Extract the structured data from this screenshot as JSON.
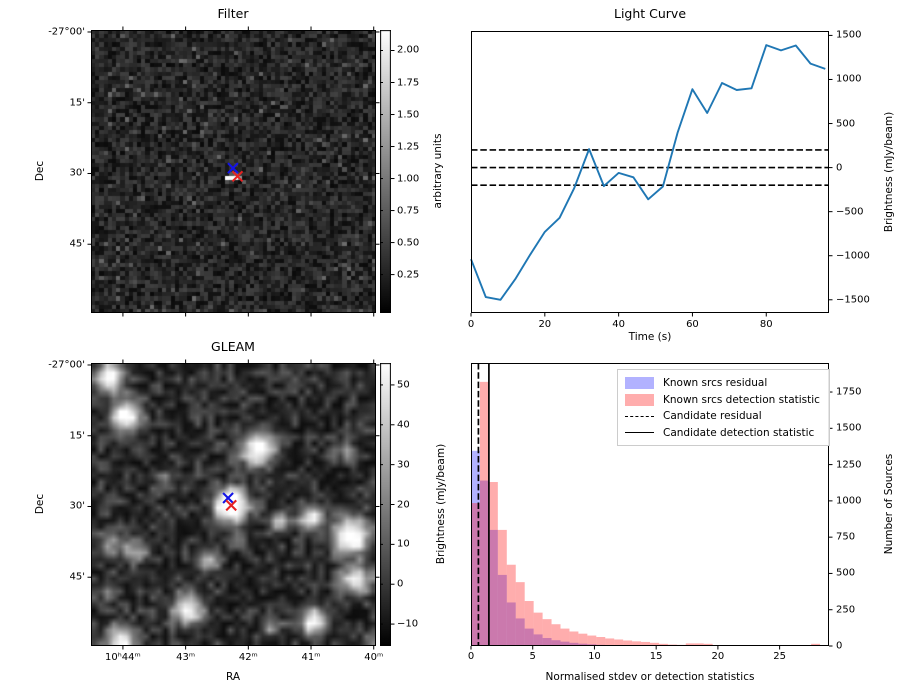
{
  "figure": {
    "background": "#ffffff"
  },
  "chart_data": [
    {
      "type": "heatmap",
      "panel": "top-left",
      "title": "Filter",
      "xlabel": "",
      "ylabel": "Dec",
      "ytick_labels": [
        "-27°00'",
        "15'",
        "30'",
        "45'"
      ],
      "xtick_labels": [],
      "description": "Pixelated grayscale noise image of sky region; bright compact source at centre marked with blue and red x markers",
      "colorbar": {
        "label": "arbitrary units",
        "ticks": [
          2.0,
          1.75,
          1.5,
          1.25,
          1.0,
          0.75,
          0.5,
          0.25
        ],
        "vmin": -0.05,
        "vmax": 2.16
      },
      "markers": [
        {
          "name": "candidate-marker",
          "symbol": "x",
          "color": "#1414e6",
          "fx": 0.498,
          "fy": 0.488
        },
        {
          "name": "reference-marker",
          "symbol": "x",
          "color": "#e62222",
          "fx": 0.514,
          "fy": 0.517
        }
      ]
    },
    {
      "type": "line",
      "panel": "top-right",
      "title": "Light Curve",
      "xlabel": "Time (s)",
      "ylabel": "Brightness (mJy/beam)",
      "xlim": [
        0,
        97
      ],
      "ylim": [
        -1650,
        1550
      ],
      "xticks": [
        0,
        20,
        40,
        60,
        80
      ],
      "yticks": [
        -1500,
        -1000,
        -500,
        0,
        500,
        1000,
        1500
      ],
      "line_color": "#1f77b4",
      "threshold_lines": [
        200,
        0,
        -200
      ],
      "x": [
        0,
        4,
        8,
        12,
        16,
        20,
        24,
        28,
        32,
        36,
        40,
        44,
        48,
        52,
        56,
        60,
        64,
        68,
        72,
        76,
        80,
        84,
        88,
        92,
        96
      ],
      "y": [
        -1040,
        -1470,
        -1500,
        -1265,
        -990,
        -730,
        -570,
        -230,
        210,
        -210,
        -60,
        -110,
        -360,
        -215,
        400,
        890,
        620,
        960,
        880,
        900,
        1390,
        1330,
        1385,
        1180,
        1120
      ]
    },
    {
      "type": "heatmap",
      "panel": "bottom-left",
      "title": "GLEAM",
      "xlabel": "RA",
      "ylabel": "Dec",
      "xtick_labels": [
        "10ʰ44ᵐ",
        "43ᵐ",
        "42ᵐ",
        "41ᵐ",
        "40ᵐ"
      ],
      "ytick_labels": [
        "-27°00'",
        "15'",
        "30'",
        "45'"
      ],
      "description": "Smoothed grayscale radio survey image with many point sources; central source circled by blue and red x markers",
      "colorbar": {
        "label": "Brightness (mJy/beam)",
        "ticks": [
          50,
          40,
          30,
          20,
          10,
          0,
          -10
        ],
        "vmin": -15.5,
        "vmax": 55.5
      },
      "markers": [
        {
          "name": "candidate-marker",
          "symbol": "x",
          "color": "#1414e6",
          "fx": 0.481,
          "fy": 0.477
        },
        {
          "name": "reference-marker",
          "symbol": "x",
          "color": "#e62222",
          "fx": 0.492,
          "fy": 0.503
        }
      ]
    },
    {
      "type": "histogram",
      "panel": "bottom-right",
      "title": "",
      "xlabel": "Normalised stdev or detection statistics",
      "ylabel": "Number of Sources",
      "xlim": [
        0,
        29
      ],
      "ylim": [
        0,
        1950
      ],
      "xticks": [
        0,
        5,
        10,
        15,
        20,
        25
      ],
      "yticks": [
        0,
        250,
        500,
        750,
        1000,
        1250,
        1500,
        1750
      ],
      "bin_start": 0,
      "bin_width": 0.725,
      "series": [
        {
          "label": "Known srcs residual",
          "color": "#0000ff",
          "alpha": 0.3,
          "values": [
            1345,
            1140,
            800,
            490,
            300,
            190,
            120,
            80,
            55,
            40,
            30,
            22,
            16,
            12,
            8,
            5,
            3,
            2,
            1,
            1,
            0,
            0,
            0,
            0,
            0,
            0,
            0,
            0,
            0,
            0,
            0,
            0,
            0,
            0,
            0,
            0,
            0,
            0,
            0,
            0
          ]
        },
        {
          "label": "Known srcs detection statistic",
          "color": "#ff0000",
          "alpha": 0.32,
          "values": [
            985,
            1820,
            1130,
            800,
            560,
            440,
            310,
            230,
            185,
            150,
            120,
            100,
            85,
            72,
            62,
            52,
            45,
            38,
            32,
            28,
            22,
            15,
            10,
            8,
            18,
            18,
            15,
            5,
            3,
            3,
            2,
            2,
            2,
            2,
            2,
            2,
            2,
            2,
            15,
            3
          ]
        }
      ],
      "vlines": [
        {
          "label": "Candidate residual",
          "x": 0.6,
          "style": "dashed"
        },
        {
          "label": "Candidate detection statistic",
          "x": 1.45,
          "style": "solid"
        }
      ]
    }
  ]
}
